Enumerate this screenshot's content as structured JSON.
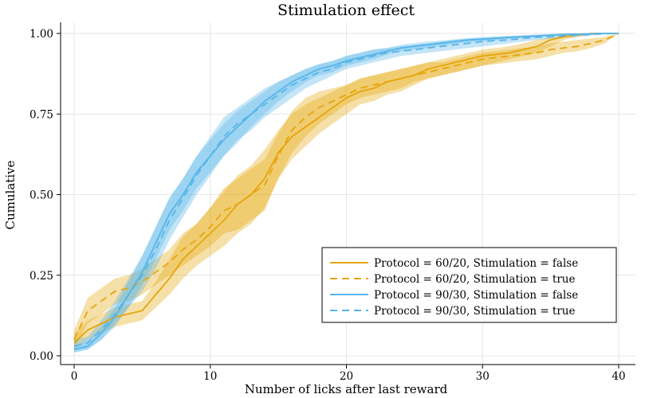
{
  "chart_data": {
    "type": "line",
    "title": "Stimulation effect",
    "xlabel": "Number of licks after last reward",
    "ylabel": "Cumulative",
    "xlim": [
      0,
      40
    ],
    "ylim": [
      0,
      1
    ],
    "xticks": [
      0,
      10,
      20,
      30,
      40
    ],
    "yticks": [
      "0.00",
      "0.25",
      "0.50",
      "0.75",
      "1.00"
    ],
    "grid": true,
    "legend_position": "lower-right",
    "x": [
      0,
      1,
      2,
      3,
      4,
      5,
      6,
      7,
      8,
      9,
      10,
      11,
      12,
      13,
      14,
      15,
      16,
      17,
      18,
      19,
      20,
      21,
      22,
      23,
      24,
      25,
      26,
      27,
      28,
      29,
      30,
      31,
      32,
      33,
      34,
      35,
      36,
      37,
      38,
      39,
      40
    ],
    "series": [
      {
        "name": "Protocol = 60/20, Stimulation = false",
        "color": "#E5A50A",
        "style": "solid",
        "values": [
          0.04,
          0.08,
          0.1,
          0.12,
          0.13,
          0.14,
          0.19,
          0.24,
          0.3,
          0.34,
          0.38,
          0.42,
          0.47,
          0.5,
          0.55,
          0.63,
          0.68,
          0.71,
          0.74,
          0.77,
          0.8,
          0.82,
          0.83,
          0.85,
          0.86,
          0.87,
          0.89,
          0.9,
          0.91,
          0.92,
          0.93,
          0.935,
          0.94,
          0.95,
          0.96,
          0.98,
          0.99,
          0.995,
          1.0,
          1.0,
          1.0
        ],
        "lower": [
          0.02,
          0.05,
          0.07,
          0.09,
          0.1,
          0.11,
          0.15,
          0.19,
          0.24,
          0.28,
          0.31,
          0.34,
          0.38,
          0.41,
          0.46,
          0.55,
          0.61,
          0.65,
          0.69,
          0.72,
          0.75,
          0.78,
          0.79,
          0.81,
          0.82,
          0.84,
          0.86,
          0.87,
          0.88,
          0.89,
          0.9,
          0.91,
          0.92,
          0.93,
          0.94,
          0.96,
          0.98,
          0.99,
          0.995,
          1.0,
          1.0
        ],
        "upper": [
          0.07,
          0.11,
          0.13,
          0.15,
          0.16,
          0.17,
          0.23,
          0.3,
          0.37,
          0.41,
          0.46,
          0.51,
          0.56,
          0.59,
          0.64,
          0.7,
          0.75,
          0.78,
          0.8,
          0.82,
          0.84,
          0.86,
          0.87,
          0.88,
          0.89,
          0.9,
          0.91,
          0.92,
          0.93,
          0.94,
          0.95,
          0.955,
          0.96,
          0.97,
          0.98,
          0.99,
          0.995,
          1.0,
          1.0,
          1.0,
          1.0
        ]
      },
      {
        "name": "Protocol = 60/20, Stimulation = true",
        "color": "#E5A50A",
        "style": "dashed",
        "values": [
          0.05,
          0.14,
          0.17,
          0.2,
          0.21,
          0.23,
          0.26,
          0.29,
          0.33,
          0.36,
          0.4,
          0.45,
          0.47,
          0.5,
          0.53,
          0.62,
          0.7,
          0.74,
          0.77,
          0.79,
          0.81,
          0.83,
          0.84,
          0.85,
          0.86,
          0.87,
          0.88,
          0.89,
          0.9,
          0.91,
          0.92,
          0.925,
          0.93,
          0.935,
          0.94,
          0.95,
          0.955,
          0.96,
          0.97,
          0.98,
          1.0
        ],
        "lower": [
          0.02,
          0.1,
          0.13,
          0.16,
          0.17,
          0.19,
          0.22,
          0.25,
          0.28,
          0.31,
          0.34,
          0.38,
          0.39,
          0.42,
          0.45,
          0.55,
          0.63,
          0.68,
          0.72,
          0.75,
          0.78,
          0.8,
          0.81,
          0.82,
          0.83,
          0.85,
          0.86,
          0.87,
          0.88,
          0.89,
          0.9,
          0.905,
          0.91,
          0.915,
          0.92,
          0.93,
          0.94,
          0.945,
          0.955,
          0.97,
          1.0
        ],
        "upper": [
          0.08,
          0.18,
          0.21,
          0.24,
          0.25,
          0.27,
          0.3,
          0.33,
          0.38,
          0.41,
          0.46,
          0.52,
          0.55,
          0.58,
          0.61,
          0.69,
          0.76,
          0.8,
          0.82,
          0.83,
          0.84,
          0.86,
          0.87,
          0.88,
          0.89,
          0.9,
          0.91,
          0.91,
          0.92,
          0.93,
          0.94,
          0.945,
          0.95,
          0.955,
          0.96,
          0.97,
          0.975,
          0.98,
          0.985,
          0.99,
          1.0
        ]
      },
      {
        "name": "Protocol = 90/30, Stimulation = false",
        "color": "#56B4E9",
        "style": "solid",
        "values": [
          0.02,
          0.03,
          0.07,
          0.12,
          0.19,
          0.26,
          0.35,
          0.44,
          0.5,
          0.57,
          0.62,
          0.67,
          0.71,
          0.75,
          0.79,
          0.82,
          0.85,
          0.87,
          0.89,
          0.9,
          0.915,
          0.925,
          0.935,
          0.945,
          0.955,
          0.96,
          0.965,
          0.97,
          0.975,
          0.98,
          0.982,
          0.985,
          0.988,
          0.99,
          0.992,
          0.995,
          0.997,
          0.998,
          0.999,
          1.0,
          1.0
        ],
        "lower": [
          0.01,
          0.02,
          0.05,
          0.09,
          0.15,
          0.22,
          0.3,
          0.39,
          0.45,
          0.52,
          0.57,
          0.62,
          0.66,
          0.71,
          0.75,
          0.79,
          0.82,
          0.85,
          0.87,
          0.88,
          0.9,
          0.91,
          0.92,
          0.935,
          0.945,
          0.95,
          0.955,
          0.962,
          0.968,
          0.973,
          0.976,
          0.98,
          0.983,
          0.986,
          0.989,
          0.992,
          0.995,
          0.997,
          0.998,
          1.0,
          1.0
        ],
        "upper": [
          0.03,
          0.05,
          0.09,
          0.15,
          0.23,
          0.31,
          0.4,
          0.49,
          0.55,
          0.62,
          0.67,
          0.72,
          0.76,
          0.79,
          0.82,
          0.85,
          0.87,
          0.89,
          0.905,
          0.915,
          0.93,
          0.94,
          0.95,
          0.955,
          0.965,
          0.97,
          0.975,
          0.978,
          0.982,
          0.986,
          0.988,
          0.99,
          0.992,
          0.994,
          0.996,
          0.998,
          0.999,
          1.0,
          1.0,
          1.0,
          1.0
        ]
      },
      {
        "name": "Protocol = 90/30, Stimulation = true",
        "color": "#56B4E9",
        "style": "dashed",
        "values": [
          0.03,
          0.04,
          0.08,
          0.13,
          0.19,
          0.25,
          0.33,
          0.42,
          0.49,
          0.56,
          0.62,
          0.68,
          0.72,
          0.75,
          0.78,
          0.81,
          0.84,
          0.86,
          0.88,
          0.89,
          0.91,
          0.92,
          0.93,
          0.94,
          0.945,
          0.95,
          0.955,
          0.96,
          0.965,
          0.97,
          0.975,
          0.978,
          0.98,
          0.985,
          0.988,
          0.99,
          0.993,
          0.995,
          0.997,
          0.999,
          1.0
        ],
        "lower": [
          0.01,
          0.02,
          0.05,
          0.1,
          0.15,
          0.2,
          0.27,
          0.36,
          0.43,
          0.5,
          0.56,
          0.62,
          0.67,
          0.7,
          0.74,
          0.77,
          0.8,
          0.83,
          0.85,
          0.87,
          0.89,
          0.9,
          0.91,
          0.92,
          0.93,
          0.935,
          0.94,
          0.945,
          0.95,
          0.955,
          0.96,
          0.965,
          0.97,
          0.975,
          0.98,
          0.983,
          0.987,
          0.99,
          0.993,
          0.997,
          1.0
        ],
        "upper": [
          0.05,
          0.06,
          0.11,
          0.17,
          0.24,
          0.31,
          0.4,
          0.49,
          0.55,
          0.62,
          0.68,
          0.74,
          0.77,
          0.8,
          0.83,
          0.85,
          0.87,
          0.89,
          0.905,
          0.915,
          0.93,
          0.94,
          0.95,
          0.955,
          0.96,
          0.965,
          0.97,
          0.975,
          0.98,
          0.984,
          0.988,
          0.99,
          0.992,
          0.994,
          0.996,
          0.997,
          0.998,
          0.999,
          1.0,
          1.0,
          1.0
        ]
      }
    ]
  }
}
